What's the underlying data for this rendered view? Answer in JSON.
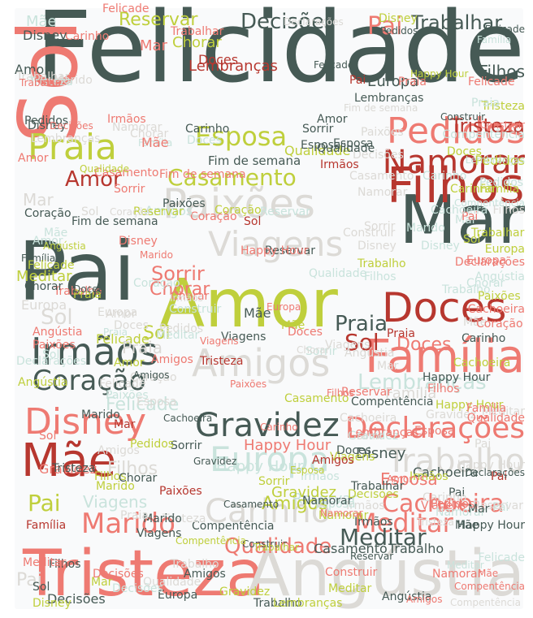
{
  "palette": {
    "background": "#f9fafb",
    "light_gray": "#dcdad6",
    "mint": "#c9e3dc",
    "lime": "#bfcf3c",
    "coral": "#ee7a72",
    "red": "#b7372f",
    "slate": "#465a55"
  },
  "words": [
    {
      "text": "Felicidade",
      "color": "slate"
    },
    {
      "text": "Sol",
      "color": "coral"
    },
    {
      "text": "Pai",
      "color": "slate"
    },
    {
      "text": "Amor",
      "color": "lime"
    },
    {
      "text": "Mar",
      "color": "slate"
    },
    {
      "text": "Tristeza",
      "color": "coral"
    },
    {
      "text": "Angústia",
      "color": "light_gray"
    },
    {
      "text": "Paixões",
      "color": "light_gray"
    },
    {
      "text": "Família",
      "color": "coral"
    },
    {
      "text": "Doces",
      "color": "red"
    },
    {
      "text": "Filhos",
      "color": "red"
    },
    {
      "text": "Pedidos",
      "color": "coral"
    },
    {
      "text": "Namorar",
      "color": "red"
    },
    {
      "text": "Viagens",
      "color": "light_gray"
    },
    {
      "text": "Irmãos",
      "color": "slate"
    },
    {
      "text": "Amigos",
      "color": "light_gray"
    },
    {
      "text": "Casamento",
      "color": "lime"
    },
    {
      "text": "Praia",
      "color": "lime"
    },
    {
      "text": "Mãe",
      "color": "red"
    },
    {
      "text": "Disney",
      "color": "coral"
    },
    {
      "text": "Gravidez",
      "color": "slate"
    },
    {
      "text": "Declarações",
      "color": "coral"
    },
    {
      "text": "Europa",
      "color": "mint"
    },
    {
      "text": "Trabalho",
      "color": "light_gray"
    },
    {
      "text": "Carinho",
      "color": "light_gray"
    },
    {
      "text": "Cachoeira",
      "color": "coral"
    },
    {
      "text": "Marido",
      "color": "coral"
    },
    {
      "text": "Qualidade",
      "color": "coral"
    },
    {
      "text": "Meditar",
      "color": "coral"
    },
    {
      "text": "Coração",
      "color": "slate"
    },
    {
      "text": "Lembranças",
      "color": "mint"
    },
    {
      "text": "Decisões",
      "color": "slate"
    },
    {
      "text": "Trabalhar",
      "color": "slate"
    },
    {
      "text": "Esposa",
      "color": "lime"
    },
    {
      "text": "Sorrir",
      "color": "coral"
    },
    {
      "text": "Chorar",
      "color": "coral"
    },
    {
      "text": "Tristeza",
      "color": "red"
    },
    {
      "text": "Fim de semana",
      "color": "slate"
    },
    {
      "text": "Casamento",
      "color": "slate"
    },
    {
      "text": "Trabalho",
      "color": "slate"
    },
    {
      "text": "Happy Hour",
      "color": "mint"
    },
    {
      "text": "Disney",
      "color": "slate"
    },
    {
      "text": "Cachoeira",
      "color": "slate"
    },
    {
      "text": "Pai",
      "color": "coral"
    },
    {
      "text": "Sol",
      "color": "red"
    },
    {
      "text": "Doces",
      "color": "coral"
    },
    {
      "text": "Felicade",
      "color": "lime"
    },
    {
      "text": "Filhos",
      "color": "slate"
    },
    {
      "text": "Felicade",
      "color": "mint"
    },
    {
      "text": "Reservar",
      "color": "lime"
    },
    {
      "text": "Carinho",
      "color": "coral"
    },
    {
      "text": "Disney",
      "color": "slate"
    },
    {
      "text": "Mãe",
      "color": "mint"
    },
    {
      "text": "Chorar",
      "color": "lime"
    },
    {
      "text": "Construir",
      "color": "coral"
    },
    {
      "text": "Qualidade",
      "color": "lime"
    },
    {
      "text": "Amigos",
      "color": "coral"
    },
    {
      "text": "Reservar",
      "color": "mint"
    },
    {
      "text": "Compentência",
      "color": "mint"
    },
    {
      "text": "Happy Hour",
      "color": "coral"
    },
    {
      "text": "Sorrir",
      "color": "slate"
    },
    {
      "text": "Meditar",
      "color": "lime"
    },
    {
      "text": "Família",
      "color": "light_gray"
    },
    {
      "text": "Gravidez",
      "color": "lime"
    },
    {
      "text": "Esposa",
      "color": "coral"
    },
    {
      "text": "Europa",
      "color": "light_gray"
    },
    {
      "text": "Irmãos",
      "color": "light_gray"
    },
    {
      "text": "Viagens",
      "color": "mint"
    },
    {
      "text": "Paixões",
      "color": "coral"
    },
    {
      "text": "Marido",
      "color": "light_gray"
    },
    {
      "text": "Praia",
      "color": "light_gray"
    },
    {
      "text": "Amor",
      "color": "slate"
    },
    {
      "text": "Coração",
      "color": "light_gray"
    },
    {
      "text": "Decisões",
      "color": "slate"
    },
    {
      "text": "Compentência",
      "color": "slate"
    },
    {
      "text": "Lembranças",
      "color": "red"
    },
    {
      "text": "Trabalhar",
      "color": "lime"
    },
    {
      "text": "Namorar",
      "color": "light_gray"
    },
    {
      "text": "Pedidos",
      "color": "lime"
    },
    {
      "text": "Angústia",
      "color": "lime"
    },
    {
      "text": "Mar",
      "color": "light_gray"
    },
    {
      "text": "Filhos",
      "color": "light_gray"
    },
    {
      "text": "Amor",
      "color": "red"
    },
    {
      "text": "Sol",
      "color": "lime"
    },
    {
      "text": "Pai",
      "color": "light_gray"
    },
    {
      "text": "Praia",
      "color": "slate"
    },
    {
      "text": "Mãe",
      "color": "slate"
    },
    {
      "text": "Doces",
      "color": "red"
    },
    {
      "text": "Amigos",
      "color": "lime"
    },
    {
      "text": "Felicade",
      "color": "coral"
    },
    {
      "text": "Meditar",
      "color": "slate"
    },
    {
      "text": "Chorar",
      "color": "light_gray"
    },
    {
      "text": "Declarações",
      "color": "mint"
    },
    {
      "text": "Disney",
      "color": "lime"
    },
    {
      "text": "Europa",
      "color": "slate"
    },
    {
      "text": "Trabalho",
      "color": "coral"
    },
    {
      "text": "Família",
      "color": "mint"
    },
    {
      "text": "Sol",
      "color": "light_gray"
    },
    {
      "text": "Pai",
      "color": "lime"
    },
    {
      "text": "Mar",
      "color": "coral"
    },
    {
      "text": "Coração",
      "color": "coral"
    },
    {
      "text": "Sorrir",
      "color": "light_gray"
    },
    {
      "text": "Viagens",
      "color": "slate"
    },
    {
      "text": "Paixões",
      "color": "mint"
    },
    {
      "text": "Tristeza",
      "color": "light_gray"
    },
    {
      "text": "Amor",
      "color": "coral"
    },
    {
      "text": "Carinho",
      "color": "slate"
    },
    {
      "text": "Reservar",
      "color": "coral"
    },
    {
      "text": "Irmãos",
      "color": "coral"
    },
    {
      "text": "Esposa",
      "color": "slate"
    },
    {
      "text": "Namorar",
      "color": "coral"
    },
    {
      "text": "Pai",
      "color": "mint"
    },
    {
      "text": "Sol",
      "color": "mint"
    },
    {
      "text": "Mãe",
      "color": "coral"
    },
    {
      "text": "Filhos",
      "color": "lime"
    },
    {
      "text": "Pedidos",
      "color": "light_gray"
    },
    {
      "text": "Construir",
      "color": "light_gray"
    },
    {
      "text": "Happy Hour",
      "color": "slate"
    },
    {
      "text": "Cachoeira",
      "color": "lime"
    },
    {
      "text": "Gravidez",
      "color": "coral"
    },
    {
      "text": "Amigos",
      "color": "mint"
    },
    {
      "text": "Compentência",
      "color": "light_gray"
    },
    {
      "text": "Praia",
      "color": "coral"
    },
    {
      "text": "Marido",
      "color": "slate"
    },
    {
      "text": "Doces",
      "color": "slate"
    },
    {
      "text": "Lembranças",
      "color": "slate"
    },
    {
      "text": "Felicade",
      "color": "slate"
    },
    {
      "text": "Qualidade",
      "color": "mint"
    },
    {
      "text": "Disney",
      "color": "coral"
    },
    {
      "text": "Decisões",
      "color": "coral"
    },
    {
      "text": "Chorar",
      "color": "slate"
    },
    {
      "text": "Europa",
      "color": "lime"
    },
    {
      "text": "Meditar",
      "color": "mint"
    },
    {
      "text": "Família",
      "color": "slate"
    },
    {
      "text": "Trabalho",
      "color": "mint"
    },
    {
      "text": "Angústia",
      "color": "coral"
    },
    {
      "text": "Sorrir",
      "color": "lime"
    },
    {
      "text": "Amor",
      "color": "mint"
    },
    {
      "text": "Tristeza",
      "color": "lime"
    },
    {
      "text": "Mar",
      "color": "lime"
    },
    {
      "text": "Sol",
      "color": "slate"
    },
    {
      "text": "Pai",
      "color": "red"
    },
    {
      "text": "Mãe",
      "color": "lime"
    },
    {
      "text": "Filhos",
      "color": "coral"
    },
    {
      "text": "Viagens",
      "color": "coral"
    },
    {
      "text": "Carinho",
      "color": "mint"
    },
    {
      "text": "Irmãos",
      "color": "slate"
    },
    {
      "text": "Trabalhar",
      "color": "coral"
    },
    {
      "text": "Paixões",
      "color": "slate"
    },
    {
      "text": "Esposa",
      "color": "mint"
    },
    {
      "text": "Reservar",
      "color": "slate"
    },
    {
      "text": "Coração",
      "color": "mint"
    },
    {
      "text": "Namorar",
      "color": "lime"
    },
    {
      "text": "Pedidos",
      "color": "slate"
    },
    {
      "text": "Casamento",
      "color": "coral"
    },
    {
      "text": "Fim de semana",
      "color": "coral"
    },
    {
      "text": "Happy Hour",
      "color": "lime"
    },
    {
      "text": "Cachoeira",
      "color": "light_gray"
    },
    {
      "text": "Gravidez",
      "color": "mint"
    },
    {
      "text": "Amigos",
      "color": "slate"
    },
    {
      "text": "Praia",
      "color": "mint"
    },
    {
      "text": "Doces",
      "color": "lime"
    },
    {
      "text": "Disney",
      "color": "light_gray"
    },
    {
      "text": "Felicade",
      "color": "light_gray"
    },
    {
      "text": "Construir",
      "color": "slate"
    },
    {
      "text": "Sol",
      "color": "coral"
    },
    {
      "text": "Pai",
      "color": "slate"
    },
    {
      "text": "Mar",
      "color": "mint"
    },
    {
      "text": "Mãe",
      "color": "light_gray"
    },
    {
      "text": "Amor",
      "color": "light_gray"
    },
    {
      "text": "Europa",
      "color": "coral"
    },
    {
      "text": "Chorar",
      "color": "mint"
    },
    {
      "text": "Sorrir",
      "color": "mint"
    },
    {
      "text": "Filhos",
      "color": "mint"
    },
    {
      "text": "Meditar",
      "color": "light_gray"
    },
    {
      "text": "Trabalho",
      "color": "lime"
    },
    {
      "text": "Família",
      "color": "lime"
    },
    {
      "text": "Decisões",
      "color": "light_gray"
    },
    {
      "text": "Qualidade",
      "color": "slate"
    },
    {
      "text": "Tristeza",
      "color": "slate"
    },
    {
      "text": "Lembranças",
      "color": "coral"
    },
    {
      "text": "Compentência",
      "color": "coral"
    },
    {
      "text": "Angústia",
      "color": "slate"
    },
    {
      "text": "Marido",
      "color": "lime"
    },
    {
      "text": "Viagens",
      "color": "lime"
    },
    {
      "text": "Paixões",
      "color": "lime"
    },
    {
      "text": "Irmãos",
      "color": "lime"
    },
    {
      "text": "Carinho",
      "color": "lime"
    },
    {
      "text": "Coração",
      "color": "lime"
    },
    {
      "text": "Esposa",
      "color": "light_gray"
    },
    {
      "text": "Namorar",
      "color": "mint"
    },
    {
      "text": "Reservar",
      "color": "light_gray"
    },
    {
      "text": "Pedidos",
      "color": "mint"
    },
    {
      "text": "Happy Hour",
      "color": "light_gray"
    },
    {
      "text": "Doces",
      "color": "mint"
    },
    {
      "text": "Praia",
      "color": "red"
    },
    {
      "text": "Amigos",
      "color": "red"
    },
    {
      "text": "Sol",
      "color": "lime"
    },
    {
      "text": "Pai",
      "color": "coral"
    },
    {
      "text": "Mãe",
      "color": "slate"
    },
    {
      "text": "Mar",
      "color": "slate"
    },
    {
      "text": "Disney",
      "color": "mint"
    },
    {
      "text": "Felicade",
      "color": "coral"
    },
    {
      "text": "Europa",
      "color": "slate"
    },
    {
      "text": "Chorar",
      "color": "coral"
    },
    {
      "text": "Filhos",
      "color": "slate"
    },
    {
      "text": "Sorrir",
      "color": "coral"
    },
    {
      "text": "Trabalhar",
      "color": "light_gray"
    },
    {
      "text": "Cachoeira",
      "color": "mint"
    },
    {
      "text": "Gravidez",
      "color": "light_gray"
    },
    {
      "text": "Casamento",
      "color": "light_gray"
    },
    {
      "text": "Declarações",
      "color": "slate"
    },
    {
      "text": "Amor",
      "color": "lime"
    },
    {
      "text": "Tristeza",
      "color": "mint"
    },
    {
      "text": "Meditar",
      "color": "coral"
    },
    {
      "text": "Família",
      "color": "red"
    },
    {
      "text": "Trabalho",
      "color": "light_gray"
    },
    {
      "text": "Decisões",
      "color": "mint"
    },
    {
      "text": "Qualidade",
      "color": "light_gray"
    },
    {
      "text": "Coração",
      "color": "slate"
    },
    {
      "text": "Marido",
      "color": "mint"
    },
    {
      "text": "Irmãos",
      "color": "mint"
    },
    {
      "text": "Viagens",
      "color": "light_gray"
    },
    {
      "text": "Paixões",
      "color": "light_gray"
    },
    {
      "text": "Carinho",
      "color": "light_gray"
    },
    {
      "text": "Esposa",
      "color": "coral"
    },
    {
      "text": "Namorar",
      "color": "slate"
    },
    {
      "text": "Reservar",
      "color": "lime"
    },
    {
      "text": "Pedidos",
      "color": "coral"
    },
    {
      "text": "Happy Hour",
      "color": "slate"
    },
    {
      "text": "Construir",
      "color": "mint"
    },
    {
      "text": "Lembranças",
      "color": "light_gray"
    },
    {
      "text": "Compentência",
      "color": "lime"
    },
    {
      "text": "Angústia",
      "color": "mint"
    },
    {
      "text": "Doces",
      "color": "light_gray"
    },
    {
      "text": "Praia",
      "color": "lime"
    },
    {
      "text": "Amigos",
      "color": "light_gray"
    },
    {
      "text": "Sol",
      "color": "light_gray"
    },
    {
      "text": "Pai",
      "color": "light_gray"
    },
    {
      "text": "Mãe",
      "color": "mint"
    },
    {
      "text": "Mar",
      "color": "light_gray"
    },
    {
      "text": "Fim de semana",
      "color": "slate"
    },
    {
      "text": "Disney",
      "color": "lime"
    },
    {
      "text": "Felicade",
      "color": "lime"
    },
    {
      "text": "Europa",
      "color": "light_gray"
    },
    {
      "text": "Chorar",
      "color": "slate"
    },
    {
      "text": "Filhos",
      "color": "light_gray"
    },
    {
      "text": "Sorrir",
      "color": "slate"
    },
    {
      "text": "Amor",
      "color": "slate"
    },
    {
      "text": "Tristeza",
      "color": "red"
    },
    {
      "text": "Meditar",
      "color": "lime"
    },
    {
      "text": "Família",
      "color": "coral"
    },
    {
      "text": "Trabalho",
      "color": "slate"
    },
    {
      "text": "Decisões",
      "color": "lime"
    },
    {
      "text": "Qualidade",
      "color": "coral"
    },
    {
      "text": "Coração",
      "color": "coral"
    },
    {
      "text": "Marido",
      "color": "slate"
    },
    {
      "text": "Irmãos",
      "color": "red"
    },
    {
      "text": "Viagens",
      "color": "slate"
    },
    {
      "text": "Paixões",
      "color": "red"
    },
    {
      "text": "Carinho",
      "color": "slate"
    },
    {
      "text": "Esposa",
      "color": "slate"
    },
    {
      "text": "Namorar",
      "color": "light_gray"
    },
    {
      "text": "Reservar",
      "color": "mint"
    },
    {
      "text": "Pedidos",
      "color": "lime"
    },
    {
      "text": "Happy Hour",
      "color": "coral"
    },
    {
      "text": "Construir",
      "color": "coral"
    },
    {
      "text": "Lembranças",
      "color": "lime"
    },
    {
      "text": "Compentência",
      "color": "slate"
    },
    {
      "text": "Angústia",
      "color": "light_gray"
    },
    {
      "text": "Doces",
      "color": "coral"
    },
    {
      "text": "Praia",
      "color": "light_gray"
    },
    {
      "text": "Amigos",
      "color": "coral"
    },
    {
      "text": "Cachoeira",
      "color": "coral"
    },
    {
      "text": "Gravidez",
      "color": "lime"
    },
    {
      "text": "Casamento",
      "color": "lime"
    },
    {
      "text": "Trabalhar",
      "color": "slate"
    },
    {
      "text": "Declarações",
      "color": "coral"
    },
    {
      "text": "Felicade",
      "color": "mint"
    },
    {
      "text": "Sol",
      "color": "red"
    },
    {
      "text": "Pai",
      "color": "red"
    },
    {
      "text": "Mãe",
      "color": "coral"
    },
    {
      "text": "Mar",
      "color": "red"
    },
    {
      "text": "Disney",
      "color": "slate"
    },
    {
      "text": "Europa",
      "color": "coral"
    },
    {
      "text": "Chorar",
      "color": "light_gray"
    },
    {
      "text": "Filhos",
      "color": "coral"
    },
    {
      "text": "Sorrir",
      "color": "light_gray"
    },
    {
      "text": "Amor",
      "color": "coral"
    },
    {
      "text": "Tristeza",
      "color": "light_gray"
    },
    {
      "text": "Meditar",
      "color": "mint"
    },
    {
      "text": "Família",
      "color": "mint"
    },
    {
      "text": "Trabalho",
      "color": "coral"
    },
    {
      "text": "Decisões",
      "color": "coral"
    },
    {
      "text": "Qualidade",
      "color": "lime"
    },
    {
      "text": "Coração",
      "color": "light_gray"
    },
    {
      "text": "Marido",
      "color": "coral"
    },
    {
      "text": "Irmãos",
      "color": "light_gray"
    },
    {
      "text": "Viagens",
      "color": "coral"
    },
    {
      "text": "Paixões",
      "color": "coral"
    },
    {
      "text": "Carinho",
      "color": "coral"
    },
    {
      "text": "Esposa",
      "color": "lime"
    },
    {
      "text": "Namorar",
      "color": "coral"
    },
    {
      "text": "Reservar",
      "color": "slate"
    },
    {
      "text": "Pedidos",
      "color": "slate"
    },
    {
      "text": "Happy Hour",
      "color": "lime"
    },
    {
      "text": "Construir",
      "color": "slate"
    },
    {
      "text": "Lembranças",
      "color": "mint"
    },
    {
      "text": "Compentência",
      "color": "mint"
    },
    {
      "text": "Angústia",
      "color": "lime"
    },
    {
      "text": "Doces",
      "color": "slate"
    },
    {
      "text": "Praia",
      "color": "mint"
    },
    {
      "text": "Amigos",
      "color": "slate"
    },
    {
      "text": "Cachoeira",
      "color": "slate"
    },
    {
      "text": "Gravidez",
      "color": "slate"
    },
    {
      "text": "Casamento",
      "color": "slate"
    },
    {
      "text": "Trabalhar",
      "color": "lime"
    },
    {
      "text": "Declarações",
      "color": "light_gray"
    },
    {
      "text": "Felicade",
      "color": "slate"
    },
    {
      "text": "Fim de semana",
      "color": "light_gray"
    }
  ]
}
